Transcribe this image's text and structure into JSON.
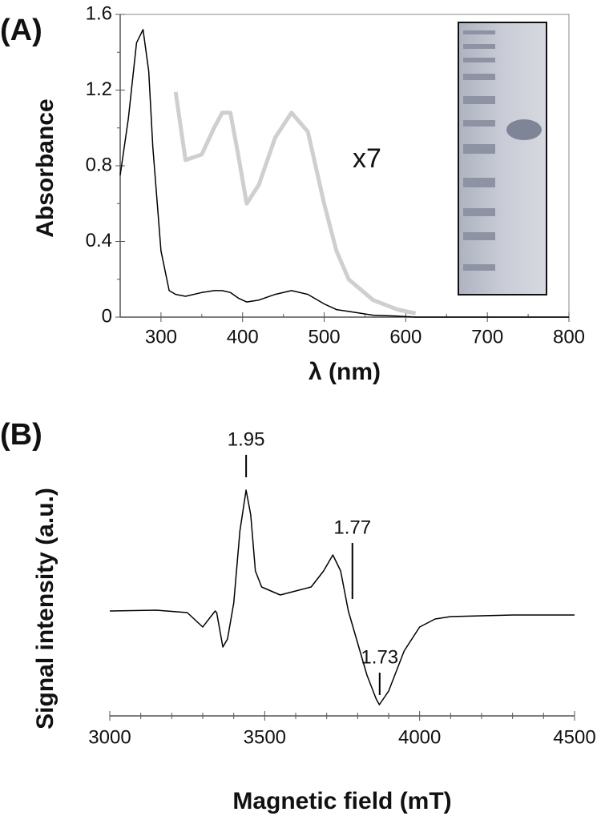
{
  "chart_data": [
    {
      "type": "line",
      "panel": "(A)",
      "ylabel": "Absorbance",
      "xlabel": "λ (nm)",
      "xlim": [
        250,
        800
      ],
      "xticks": [
        300,
        400,
        500,
        600,
        700,
        800
      ],
      "minor_xticks": [
        350,
        450,
        550,
        650,
        750
      ],
      "ylim": [
        0,
        1.6
      ],
      "yticks": [
        0,
        0.4,
        0.8,
        1.2,
        1.6
      ],
      "minor_yticks": [
        0.2,
        0.6,
        1.0,
        1.4
      ],
      "annotations": [
        {
          "text": "x7"
        }
      ],
      "x": [
        250,
        260,
        270,
        278,
        285,
        290,
        300,
        310,
        318,
        330,
        350,
        365,
        375,
        385,
        395,
        405,
        420,
        440,
        460,
        480,
        500,
        515,
        530,
        560,
        590,
        612,
        650,
        700,
        800
      ],
      "series": [
        {
          "color": "#cfcfcf",
          "width": 5,
          "values": [
            null,
            null,
            null,
            null,
            null,
            null,
            null,
            null,
            1.19,
            0.83,
            0.86,
            1.0,
            1.08,
            1.08,
            0.85,
            0.6,
            0.7,
            0.95,
            1.08,
            0.98,
            0.6,
            0.35,
            0.2,
            0.09,
            0.04,
            0.02,
            null,
            null,
            null
          ]
        },
        {
          "color": "#000000",
          "width": 1.5,
          "values": [
            0.75,
            1.05,
            1.45,
            1.52,
            1.3,
            0.9,
            0.35,
            0.14,
            0.12,
            0.11,
            0.13,
            0.14,
            0.14,
            0.13,
            0.1,
            0.08,
            0.09,
            0.12,
            0.14,
            0.12,
            0.07,
            0.04,
            0.03,
            0.01,
            0.005,
            0,
            0,
            0,
            0
          ]
        }
      ]
    },
    {
      "type": "line",
      "panel": "(B)",
      "ylabel": "Signal intensity (a.u.)",
      "xlabel": "Magnetic field (mT)",
      "xlim": [
        3000,
        4500
      ],
      "xticks": [
        3000,
        3500,
        4000,
        4500
      ],
      "minor_xticks": [
        3100,
        3200,
        3300,
        3400,
        3600,
        3700,
        3800,
        3900,
        4100,
        4200,
        4300,
        4400
      ],
      "ylim": [
        -1.31,
        1.6
      ],
      "annotations": [
        {
          "text": "1.95",
          "x": 3440
        },
        {
          "text": "1.77",
          "x": 3783
        },
        {
          "text": "1.73",
          "x": 3871
        }
      ],
      "x": [
        3000,
        3150,
        3250,
        3300,
        3330,
        3340,
        3345,
        3365,
        3380,
        3400,
        3420,
        3440,
        3455,
        3470,
        3490,
        3520,
        3550,
        3600,
        3650,
        3690,
        3720,
        3745,
        3770,
        3800,
        3830,
        3860,
        3870,
        3900,
        3950,
        4000,
        4050,
        4100,
        4200,
        4300,
        4500
      ],
      "series": [
        {
          "color": "#000000",
          "width": 1.5,
          "values": [
            0,
            0.01,
            -0.02,
            -0.2,
            -0.05,
            0,
            -0.02,
            -0.45,
            -0.35,
            0.1,
            1.0,
            1.51,
            1.2,
            0.5,
            0.3,
            0.25,
            0.2,
            0.25,
            0.3,
            0.5,
            0.7,
            0.5,
            0,
            -0.4,
            -0.8,
            -1.1,
            -1.17,
            -1.0,
            -0.5,
            -0.2,
            -0.1,
            -0.07,
            -0.06,
            -0.05,
            -0.05
          ]
        }
      ]
    }
  ]
}
